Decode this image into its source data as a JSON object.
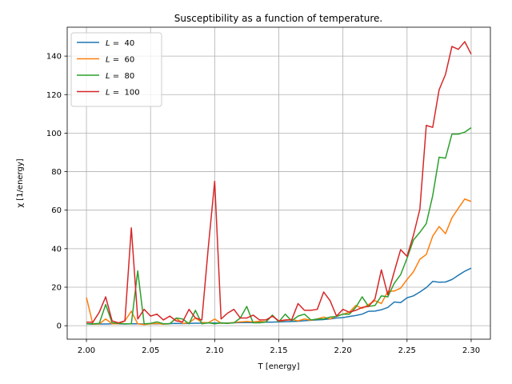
{
  "chart_data": {
    "type": "line",
    "title": "Susceptibility as a function of temperature.",
    "xlabel": "T [energy]",
    "ylabel": "χ [1/energy]",
    "xlim": [
      1.985,
      2.315
    ],
    "ylim": [
      -7,
      155
    ],
    "xticks": [
      2.0,
      2.05,
      2.1,
      2.15,
      2.2,
      2.25,
      2.3
    ],
    "xtick_labels": [
      "2.00",
      "2.05",
      "2.10",
      "2.15",
      "2.20",
      "2.25",
      "2.30"
    ],
    "yticks": [
      0,
      20,
      40,
      60,
      80,
      100,
      120,
      140
    ],
    "ytick_labels": [
      "0",
      "20",
      "40",
      "60",
      "80",
      "100",
      "120",
      "140"
    ],
    "grid": true,
    "legend_position": "top-left",
    "x": [
      2.0,
      2.005,
      2.01,
      2.015,
      2.02,
      2.025,
      2.03,
      2.035,
      2.04,
      2.045,
      2.05,
      2.055,
      2.06,
      2.065,
      2.07,
      2.075,
      2.08,
      2.085,
      2.09,
      2.095,
      2.1,
      2.105,
      2.11,
      2.115,
      2.12,
      2.125,
      2.13,
      2.135,
      2.14,
      2.145,
      2.15,
      2.155,
      2.16,
      2.165,
      2.17,
      2.175,
      2.18,
      2.185,
      2.19,
      2.195,
      2.2,
      2.205,
      2.21,
      2.215,
      2.22,
      2.225,
      2.23,
      2.235,
      2.24,
      2.245,
      2.25,
      2.255,
      2.26,
      2.265,
      2.27,
      2.275,
      2.28,
      2.285,
      2.29,
      2.295,
      2.3
    ],
    "series": [
      {
        "name": "L =  40",
        "legend_prefix": "L",
        "legend_suffix": " =  40",
        "color": "#1f77b4",
        "values": [
          1.0,
          0.8,
          0.9,
          0.9,
          1.0,
          1.0,
          0.9,
          1.0,
          1.0,
          0.9,
          1.0,
          1.0,
          1.0,
          1.1,
          1.2,
          1.1,
          1.2,
          1.3,
          1.3,
          1.4,
          1.4,
          1.3,
          1.4,
          1.5,
          1.6,
          1.6,
          1.6,
          1.7,
          1.8,
          1.9,
          2.0,
          2.1,
          2.2,
          2.3,
          2.6,
          2.8,
          3.0,
          3.2,
          3.5,
          4.0,
          4.2,
          4.8,
          5.3,
          6.0,
          7.5,
          7.6,
          8.3,
          9.5,
          12.3,
          12.0,
          14.5,
          15.5,
          17.5,
          19.8,
          23.0,
          22.6,
          22.7,
          24.0,
          26.2,
          28.3,
          29.9
        ]
      },
      {
        "name": "L =  60",
        "legend_prefix": "L",
        "legend_suffix": " =  60",
        "color": "#ff7f0e",
        "values": [
          14.7,
          0.8,
          1.0,
          3.5,
          1.0,
          1.0,
          2.5,
          7.5,
          1.0,
          0.6,
          1.0,
          1.2,
          0.8,
          1.0,
          3.9,
          1.2,
          1.5,
          4.0,
          1.7,
          1.5,
          3.5,
          1.3,
          1.3,
          1.7,
          2.0,
          2.2,
          2.0,
          2.3,
          2.0,
          5.3,
          2.3,
          2.8,
          3.3,
          2.5,
          3.5,
          2.8,
          3.5,
          4.5,
          3.5,
          5.0,
          6.0,
          7.0,
          10.5,
          9.0,
          11.0,
          13.0,
          11.5,
          17.8,
          18.0,
          19.5,
          24.0,
          28.0,
          34.5,
          37.0,
          46.5,
          51.5,
          47.8,
          56.0,
          61.0,
          65.8,
          64.5
        ]
      },
      {
        "name": "L =  80",
        "legend_prefix": "L",
        "legend_suffix": " =  80",
        "color": "#2ca02c",
        "values": [
          1.0,
          1.0,
          1.2,
          11.0,
          1.5,
          1.2,
          1.0,
          1.0,
          28.5,
          1.0,
          1.2,
          2.0,
          1.0,
          1.0,
          4.0,
          3.5,
          1.0,
          8.0,
          1.0,
          1.5,
          1.0,
          1.5,
          1.2,
          1.5,
          4.0,
          10.0,
          1.5,
          1.5,
          2.0,
          5.5,
          2.0,
          6.0,
          2.5,
          5.0,
          6.0,
          3.0,
          3.5,
          3.5,
          4.5,
          4.8,
          6.0,
          6.0,
          9.5,
          15.0,
          10.0,
          10.5,
          15.5,
          15.0,
          22.0,
          26.5,
          35.0,
          44.5,
          48.5,
          53.0,
          67.5,
          87.5,
          87.0,
          99.5,
          99.5,
          100.5,
          102.8
        ]
      },
      {
        "name": "L =  100",
        "legend_prefix": "L",
        "legend_suffix": " =  100",
        "color": "#d62728",
        "values": [
          1.8,
          1.8,
          7.0,
          15.0,
          2.5,
          1.5,
          2.5,
          50.8,
          3.5,
          8.5,
          5.0,
          6.0,
          3.0,
          5.0,
          2.5,
          2.0,
          8.5,
          4.0,
          3.0,
          40.5,
          75.0,
          3.5,
          6.5,
          8.5,
          4.0,
          4.0,
          5.5,
          3.0,
          3.0,
          5.0,
          2.5,
          3.0,
          3.0,
          11.5,
          8.0,
          8.0,
          8.5,
          17.5,
          13.0,
          5.0,
          8.5,
          7.0,
          8.0,
          9.5,
          10.0,
          14.0,
          29.0,
          16.0,
          28.0,
          39.5,
          36.0,
          47.0,
          60.5,
          104.0,
          103.0,
          122.5,
          130.5,
          145.0,
          143.5,
          147.5,
          141.0
        ]
      }
    ]
  }
}
